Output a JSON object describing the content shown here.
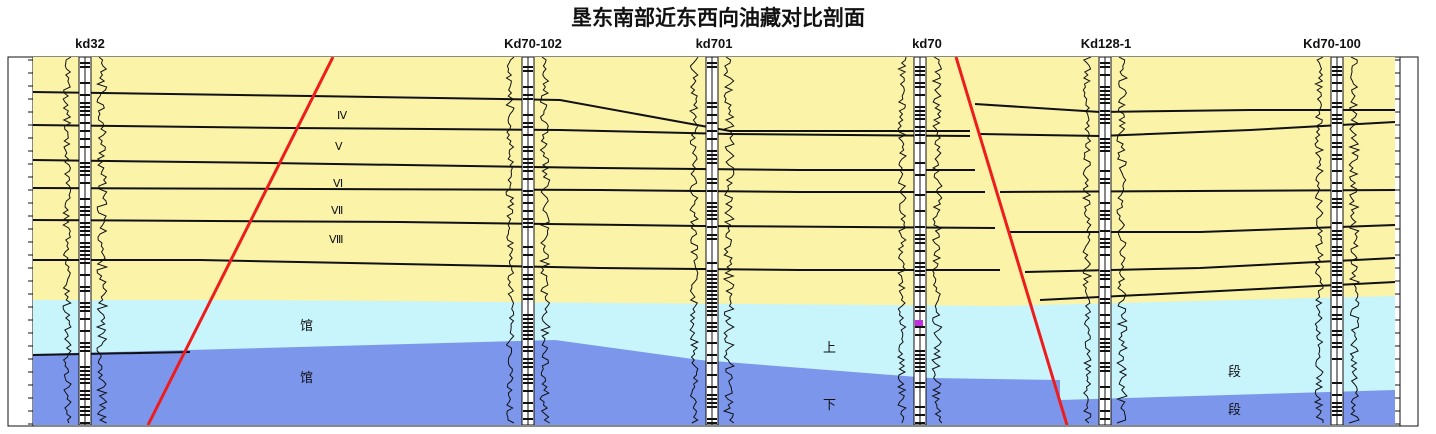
{
  "title": "垦东南部近东西向油藏对比剖面",
  "wells": [
    {
      "name": "kd32"
    },
    {
      "name": "Kd70-102"
    },
    {
      "name": "kd701"
    },
    {
      "name": "kd70"
    },
    {
      "name": "Kd128-1"
    },
    {
      "name": "Kd70-100"
    }
  ],
  "zones": [
    "Ⅳ",
    "Ⅴ",
    "Ⅵ",
    "Ⅶ",
    "Ⅷ"
  ],
  "formation_labels": {
    "guan_left_upper": "馆",
    "guan_left_lower": "馆",
    "shang": "上",
    "xia": "下",
    "duan_right_upper": "段",
    "duan_right_lower": "段"
  },
  "colors": {
    "upper_sand_background": "#faf3a8",
    "upper_guantao": "#c8f4fc",
    "lower_guantao": "#7c96ec",
    "sand_body": "#1f6ee6",
    "oil": "#ee1c1c",
    "fault": "#ee1c1c",
    "boundary": "#111111"
  }
}
